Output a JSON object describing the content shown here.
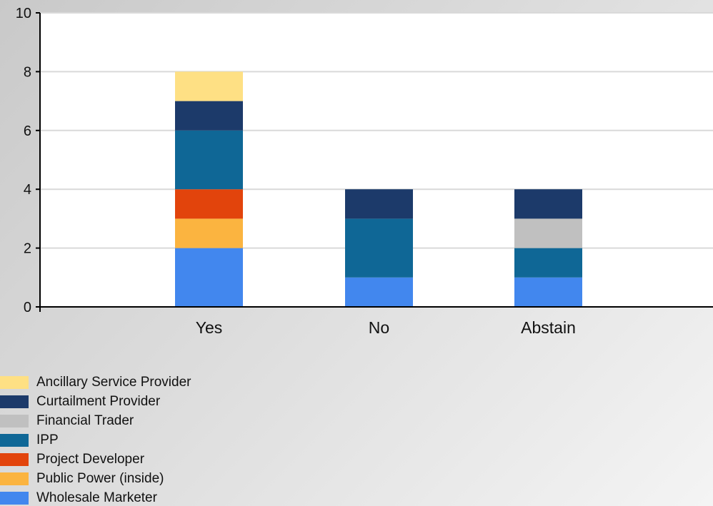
{
  "chart_data": {
    "type": "bar",
    "stacked": true,
    "categories": [
      "Yes",
      "No",
      "Abstain"
    ],
    "series": [
      {
        "name": "Wholesale Marketer",
        "color": "#4287ee",
        "values": [
          2,
          1,
          1
        ]
      },
      {
        "name": "Public Power (inside)",
        "color": "#fbb440",
        "values": [
          1,
          0,
          0
        ]
      },
      {
        "name": "Project Developer",
        "color": "#e2440c",
        "values": [
          1,
          0,
          0
        ]
      },
      {
        "name": "IPP",
        "color": "#0f6796",
        "values": [
          2,
          2,
          1
        ]
      },
      {
        "name": "Financial Trader",
        "color": "#c0c0c0",
        "values": [
          0,
          0,
          1
        ]
      },
      {
        "name": "Curtailment Provider",
        "color": "#1c3a6a",
        "values": [
          1,
          1,
          1
        ]
      },
      {
        "name": "Ancillary Service Provider",
        "color": "#fee084",
        "values": [
          1,
          0,
          0
        ]
      }
    ],
    "legend_order": [
      "Ancillary Service Provider",
      "Curtailment Provider",
      "Financial Trader",
      "IPP",
      "Project Developer",
      "Public Power (inside)",
      "Wholesale Marketer"
    ],
    "ylim": [
      0,
      10
    ],
    "yticks": [
      "0",
      "2",
      "4",
      "6",
      "8",
      "10"
    ],
    "grid": true,
    "legend_position": "bottom-left",
    "title": "",
    "xlabel": "",
    "ylabel": ""
  }
}
